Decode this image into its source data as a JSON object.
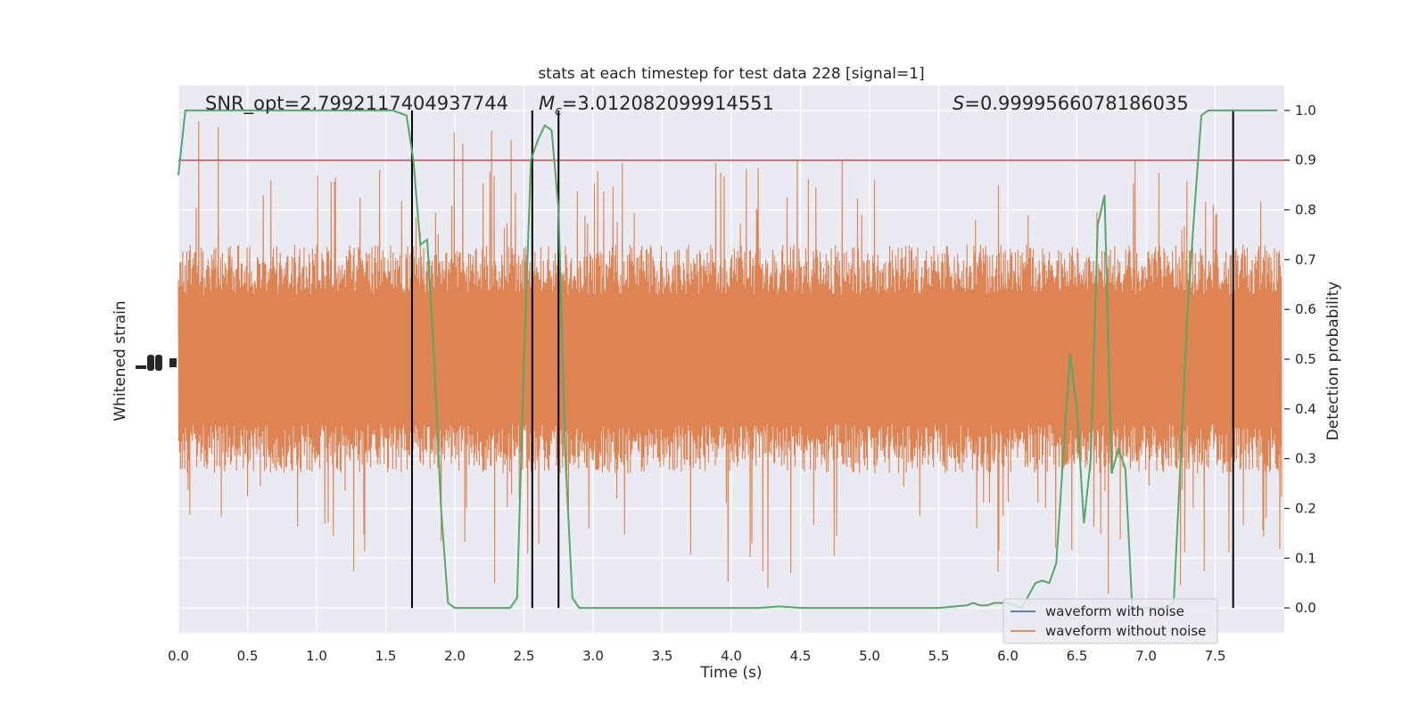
{
  "chart_data": {
    "type": "line",
    "title": "stats at each timestep for test data 228 [signal=1]",
    "xlabel": "Time (s)",
    "ylabel_left": "Whitened strain",
    "ylabel_right": "Detection probability",
    "xlim": [
      0.0,
      8.0
    ],
    "ylim_right": [
      -0.05,
      1.05
    ],
    "xticks": [
      "0.0",
      "0.5",
      "1.0",
      "1.5",
      "2.0",
      "2.5",
      "3.0",
      "3.5",
      "4.0",
      "4.5",
      "5.0",
      "5.5",
      "6.0",
      "6.5",
      "7.0",
      "7.5"
    ],
    "yticks_right": [
      "0.0",
      "0.1",
      "0.2",
      "0.3",
      "0.4",
      "0.5",
      "0.6",
      "0.7",
      "0.8",
      "0.9",
      "1.0"
    ],
    "grid": true,
    "annotations": {
      "snr": "SNR_opt=2.7992117404937744",
      "mc": "=3.012082099914551",
      "mc_symbol": "M",
      "mc_sub": "c",
      "s": "=0.9999566078186035",
      "s_symbol": "S"
    },
    "threshold": 0.9,
    "vertical_lines_x": [
      1.69,
      2.56,
      2.75,
      7.63
    ],
    "legend": {
      "placement": "lower-right",
      "entries": [
        {
          "label": "waveform with noise",
          "color": "#4c72b0"
        },
        {
          "label": "waveform without noise",
          "color": "#dd8452"
        }
      ]
    },
    "series": [
      {
        "name": "Detection probability",
        "color": "#55a868",
        "x": [
          0.0,
          0.05,
          0.1,
          0.2,
          0.4,
          0.6,
          0.8,
          1.0,
          1.2,
          1.4,
          1.55,
          1.65,
          1.7,
          1.75,
          1.8,
          1.85,
          1.9,
          1.95,
          2.0,
          2.05,
          2.1,
          2.2,
          2.3,
          2.4,
          2.45,
          2.5,
          2.55,
          2.6,
          2.65,
          2.7,
          2.75,
          2.8,
          2.85,
          2.9,
          2.95,
          3.0,
          3.2,
          3.4,
          3.6,
          3.8,
          4.0,
          4.2,
          4.35,
          4.5,
          4.7,
          4.9,
          5.1,
          5.3,
          5.5,
          5.7,
          5.75,
          5.8,
          5.85,
          5.9,
          6.0,
          6.1,
          6.2,
          6.25,
          6.3,
          6.35,
          6.4,
          6.45,
          6.5,
          6.55,
          6.6,
          6.65,
          6.7,
          6.75,
          6.8,
          6.85,
          6.9,
          6.95,
          7.0,
          7.05,
          7.1,
          7.15,
          7.2,
          7.25,
          7.3,
          7.35,
          7.4,
          7.45,
          7.5,
          7.55,
          7.6,
          7.65,
          7.7,
          7.75,
          7.8,
          7.9,
          7.95
        ],
        "values": [
          0.87,
          1.0,
          1.0,
          1.0,
          1.0,
          1.0,
          1.0,
          1.0,
          1.0,
          1.0,
          1.0,
          0.99,
          0.9,
          0.73,
          0.74,
          0.5,
          0.2,
          0.01,
          0.0,
          0.0,
          0.0,
          0.0,
          0.0,
          0.0,
          0.02,
          0.5,
          0.9,
          0.94,
          0.97,
          0.96,
          0.8,
          0.3,
          0.02,
          0.0,
          0.0,
          0.0,
          0.0,
          0.0,
          0.0,
          0.0,
          0.0,
          0.0,
          0.003,
          0.0,
          0.0,
          0.0,
          0.0,
          0.0,
          0.0,
          0.005,
          0.01,
          0.005,
          0.005,
          0.01,
          0.01,
          0.0,
          0.05,
          0.055,
          0.05,
          0.09,
          0.3,
          0.51,
          0.4,
          0.17,
          0.3,
          0.77,
          0.83,
          0.27,
          0.32,
          0.28,
          0.0,
          0.0,
          0.0,
          0.0,
          0.0,
          0.0,
          0.01,
          0.3,
          0.6,
          0.8,
          0.99,
          1.0,
          1.0,
          1.0,
          1.0,
          1.0,
          1.0,
          1.0,
          1.0,
          1.0,
          1.0
        ]
      },
      {
        "name": "waveform without noise",
        "color": "#dd8452",
        "note_type": "noisy strain band centered on 0.5 of the probability axis"
      }
    ]
  }
}
